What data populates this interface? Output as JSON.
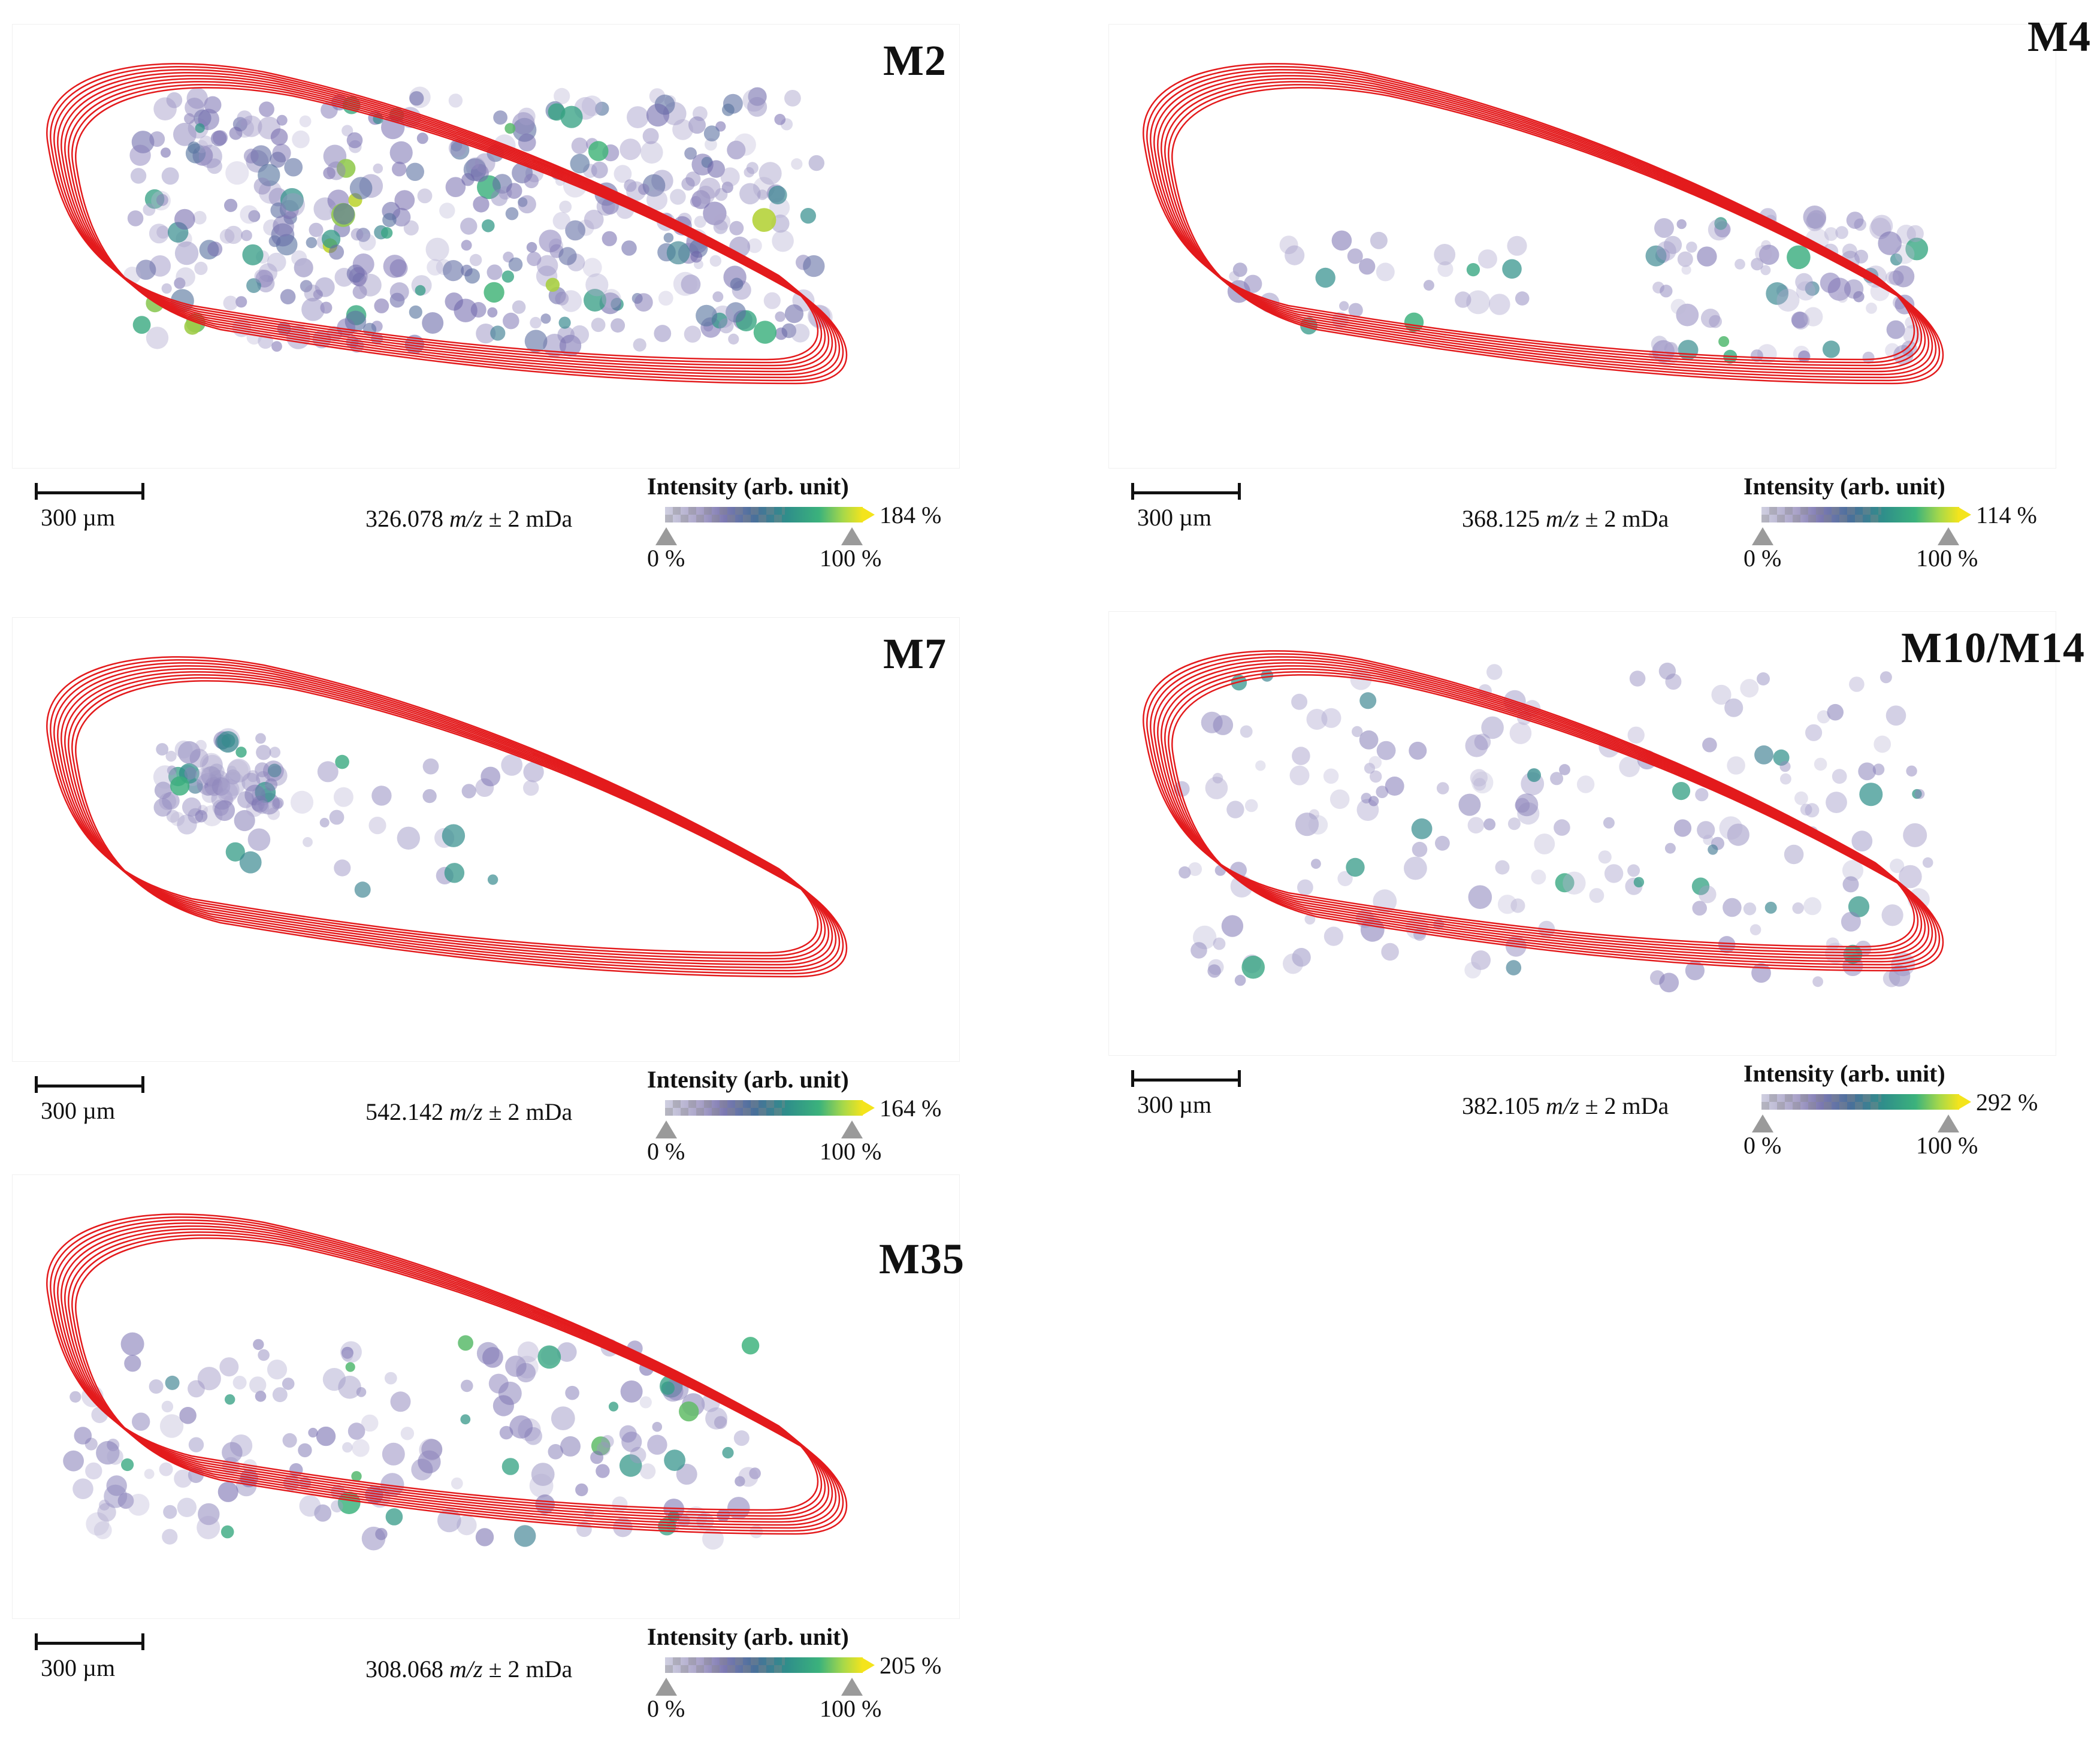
{
  "figure": {
    "legend_title": "Intensity (arb. unit)",
    "scale_label": "300 µm",
    "min_label": "0 %",
    "ref_label": "100 %",
    "mz_unit": "m/z",
    "tolerance": "± 2 mDa",
    "colors": {
      "outline": "#e31a1c",
      "low": "#7d79b2",
      "mid": "#2f8f8a",
      "high": "#f4e41c"
    }
  },
  "panels": [
    {
      "id": "M2",
      "title": "M2",
      "mz": "326.078",
      "max_pct": "184 %",
      "coverage": "dense"
    },
    {
      "id": "M4",
      "title": "M4",
      "mz": "368.125",
      "max_pct": "114 %",
      "coverage": "sparse-tip"
    },
    {
      "id": "M7",
      "title": "M7",
      "mz": "542.142",
      "max_pct": "164 %",
      "coverage": "cluster"
    },
    {
      "id": "M10-M14",
      "title": "M10/M14",
      "mz": "382.105",
      "max_pct": "292 %",
      "coverage": "scattered"
    },
    {
      "id": "M35",
      "title": "M35",
      "mz": "308.068",
      "max_pct": "205 %",
      "coverage": "lower-edge"
    }
  ]
}
